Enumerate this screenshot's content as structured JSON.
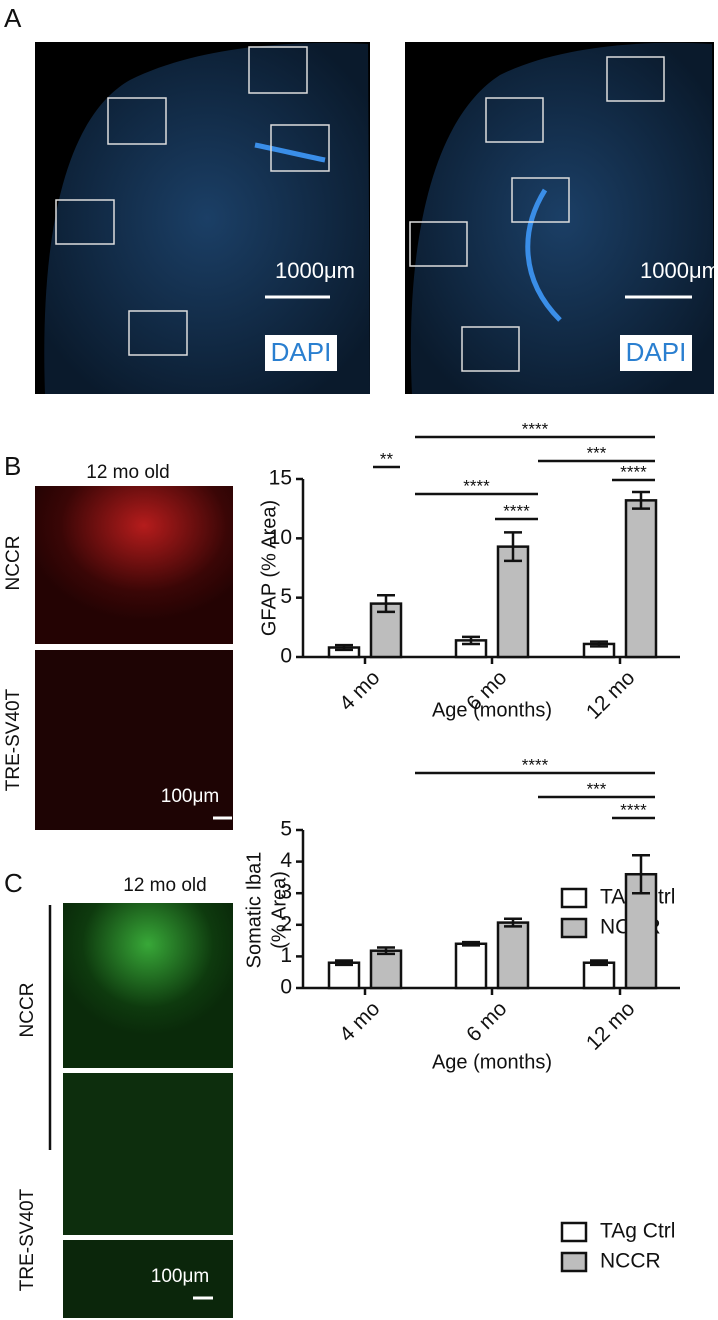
{
  "panel_labels": [
    "A",
    "B",
    "C"
  ],
  "panel_a": {
    "images": [
      {
        "scale_bar": "1000μm",
        "stain": "DAPI"
      },
      {
        "scale_bar": "1000μm",
        "stain": "DAPI"
      }
    ]
  },
  "panel_b": {
    "heading": "12 mo old",
    "row_labels": [
      "NCCR",
      "TRE-SV40T"
    ],
    "scale_bar": "100μm"
  },
  "panel_c": {
    "heading": "12 mo old",
    "row_labels": [
      "NCCR",
      "TRE-SV40T"
    ],
    "scale_bar": "100μm"
  },
  "chart_data": [
    {
      "type": "bar",
      "ylabel": "GFAP (% Area)",
      "xlabel": "Age (months)",
      "categories": [
        "4 mo",
        "6 mo",
        "12 mo"
      ],
      "series": [
        {
          "name": "TAg Ctrl",
          "color": "#ffffff",
          "values": [
            0.8,
            1.4,
            1.1
          ],
          "errors": [
            0.2,
            0.3,
            0.2
          ]
        },
        {
          "name": "NCCR",
          "color": "#bdbdbd",
          "values": [
            4.5,
            9.3,
            13.2
          ],
          "errors": [
            0.7,
            1.2,
            0.7
          ]
        }
      ],
      "ylim": [
        0,
        15
      ],
      "yticks": [
        0,
        5,
        10,
        15
      ],
      "significance": [
        "****",
        "***",
        "****",
        "****",
        "****",
        "**"
      ]
    },
    {
      "type": "bar",
      "ylabel": [
        "Somatic Iba1",
        "(% Area)"
      ],
      "xlabel": "Age (months)",
      "categories": [
        "4 mo",
        "6 mo",
        "12 mo"
      ],
      "series": [
        {
          "name": "TAg Ctrl",
          "color": "#ffffff",
          "values": [
            0.8,
            1.4,
            0.8
          ],
          "errors": [
            0.07,
            0.05,
            0.07
          ]
        },
        {
          "name": "NCCR",
          "color": "#bdbdbd",
          "values": [
            1.18,
            2.07,
            3.6
          ],
          "errors": [
            0.1,
            0.12,
            0.6
          ]
        }
      ],
      "ylim": [
        0,
        5
      ],
      "yticks": [
        0,
        1,
        2,
        3,
        4,
        5
      ],
      "significance": [
        "****",
        "***",
        "****"
      ]
    }
  ]
}
